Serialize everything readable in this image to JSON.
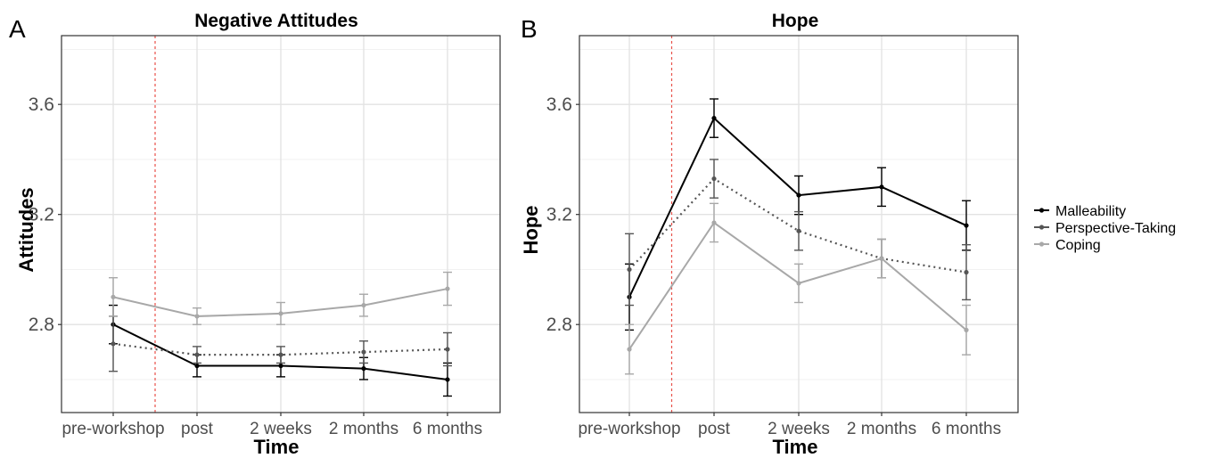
{
  "chart_data": [
    {
      "type": "line",
      "panel_letter": "A",
      "title": "Negative Attitudes",
      "xlabel": "Time",
      "ylabel": "Attitudes",
      "categories": [
        "pre-workshop",
        "post",
        "2 weeks",
        "2 months",
        "6 months"
      ],
      "yticks": [
        2.8,
        3.2,
        3.6
      ],
      "ylim": [
        2.48,
        3.85
      ],
      "grid": true,
      "reference_line": {
        "after_category": "pre-workshop",
        "style": "dashed",
        "color": "#e8514a"
      },
      "series": [
        {
          "name": "Malleability",
          "color": "#000000",
          "dash": "solid",
          "values": [
            2.8,
            2.65,
            2.65,
            2.64,
            2.6
          ],
          "errors": [
            0.07,
            0.04,
            0.04,
            0.04,
            0.06
          ]
        },
        {
          "name": "Perspective-Taking",
          "color": "#555555",
          "dash": "dotted",
          "values": [
            2.73,
            2.69,
            2.69,
            2.7,
            2.71
          ],
          "errors": [
            0.1,
            0.03,
            0.03,
            0.04,
            0.06
          ]
        },
        {
          "name": "Coping",
          "color": "#a8a8a8",
          "dash": "solid",
          "values": [
            2.9,
            2.83,
            2.84,
            2.87,
            2.93
          ],
          "errors": [
            0.07,
            0.03,
            0.04,
            0.04,
            0.06
          ]
        }
      ]
    },
    {
      "type": "line",
      "panel_letter": "B",
      "title": "Hope",
      "xlabel": "Time",
      "ylabel": "Hope",
      "categories": [
        "pre-workshop",
        "post",
        "2 weeks",
        "2 months",
        "6 months"
      ],
      "yticks": [
        2.8,
        3.2,
        3.6
      ],
      "ylim": [
        2.48,
        3.85
      ],
      "grid": true,
      "reference_line": {
        "after_category": "pre-workshop",
        "style": "dashed",
        "color": "#e8514a"
      },
      "series": [
        {
          "name": "Malleability",
          "color": "#000000",
          "dash": "solid",
          "values": [
            2.9,
            3.55,
            3.27,
            3.3,
            3.16
          ],
          "errors": [
            0.12,
            0.07,
            0.07,
            0.07,
            0.09
          ]
        },
        {
          "name": "Perspective-Taking",
          "color": "#555555",
          "dash": "dotted",
          "values": [
            3.0,
            3.33,
            3.14,
            3.04,
            2.99
          ],
          "errors": [
            0.13,
            0.07,
            0.07,
            0.07,
            0.1
          ]
        },
        {
          "name": "Coping",
          "color": "#a8a8a8",
          "dash": "solid",
          "values": [
            2.71,
            3.17,
            2.95,
            3.04,
            2.78
          ],
          "errors": [
            0.09,
            0.07,
            0.07,
            0.07,
            0.09
          ]
        }
      ]
    }
  ],
  "legend": {
    "placement": "right",
    "items": [
      {
        "name": "Malleability",
        "color": "#000000"
      },
      {
        "name": "Perspective-Taking",
        "color": "#555555"
      },
      {
        "name": "Coping",
        "color": "#a8a8a8"
      }
    ]
  }
}
